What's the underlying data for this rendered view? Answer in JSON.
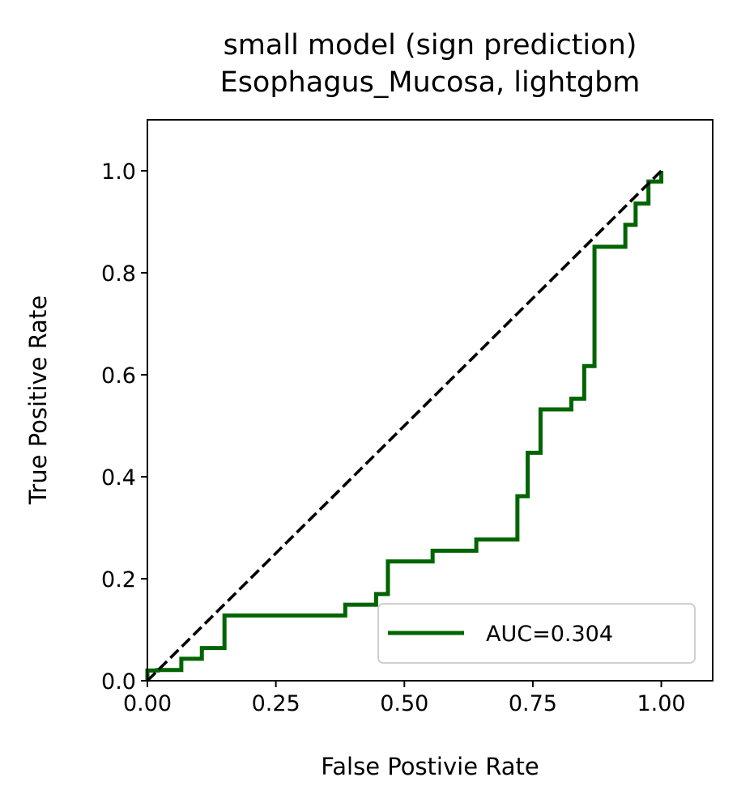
{
  "chart_data": {
    "type": "line",
    "title": "small model (sign prediction)",
    "subtitle": "Esophagus_Mucosa, lightgbm",
    "xlabel": "False Postivie Rate",
    "ylabel": "True Positive Rate",
    "xlim": [
      0,
      1.1
    ],
    "ylim": [
      0,
      1.1
    ],
    "xticks": [
      0.0,
      0.25,
      0.5,
      0.75,
      1.0
    ],
    "xtick_labels": [
      "0.00",
      "0.25",
      "0.50",
      "0.75",
      "1.00"
    ],
    "yticks": [
      0.0,
      0.2,
      0.4,
      0.6,
      0.8,
      1.0
    ],
    "ytick_labels": [
      "0.0",
      "0.2",
      "0.4",
      "0.6",
      "0.8",
      "1.0"
    ],
    "grid": false,
    "legend_position": "lower-right",
    "series": [
      {
        "name": "AUC=0.304",
        "color": "#006400",
        "style": "step",
        "points": [
          [
            0.0,
            0.0
          ],
          [
            0.0,
            0.02
          ],
          [
            0.02,
            0.02
          ],
          [
            0.02,
            0.021
          ],
          [
            0.066,
            0.021
          ],
          [
            0.066,
            0.043
          ],
          [
            0.106,
            0.043
          ],
          [
            0.106,
            0.064
          ],
          [
            0.15,
            0.064
          ],
          [
            0.15,
            0.128
          ],
          [
            0.385,
            0.128
          ],
          [
            0.385,
            0.149
          ],
          [
            0.445,
            0.149
          ],
          [
            0.445,
            0.17
          ],
          [
            0.468,
            0.17
          ],
          [
            0.468,
            0.234
          ],
          [
            0.555,
            0.234
          ],
          [
            0.555,
            0.255
          ],
          [
            0.64,
            0.255
          ],
          [
            0.64,
            0.277
          ],
          [
            0.72,
            0.277
          ],
          [
            0.72,
            0.362
          ],
          [
            0.74,
            0.362
          ],
          [
            0.74,
            0.447
          ],
          [
            0.765,
            0.447
          ],
          [
            0.765,
            0.532
          ],
          [
            0.825,
            0.532
          ],
          [
            0.825,
            0.553
          ],
          [
            0.85,
            0.553
          ],
          [
            0.85,
            0.617
          ],
          [
            0.87,
            0.617
          ],
          [
            0.87,
            0.851
          ],
          [
            0.93,
            0.851
          ],
          [
            0.93,
            0.894
          ],
          [
            0.95,
            0.894
          ],
          [
            0.95,
            0.936
          ],
          [
            0.975,
            0.936
          ],
          [
            0.975,
            0.979
          ],
          [
            1.0,
            0.979
          ],
          [
            1.0,
            1.0
          ]
        ]
      },
      {
        "name": "",
        "color": "#000000",
        "style": "dashed",
        "points": [
          [
            0.0,
            0.0
          ],
          [
            1.0,
            1.0
          ]
        ]
      }
    ],
    "auc": 0.304
  }
}
